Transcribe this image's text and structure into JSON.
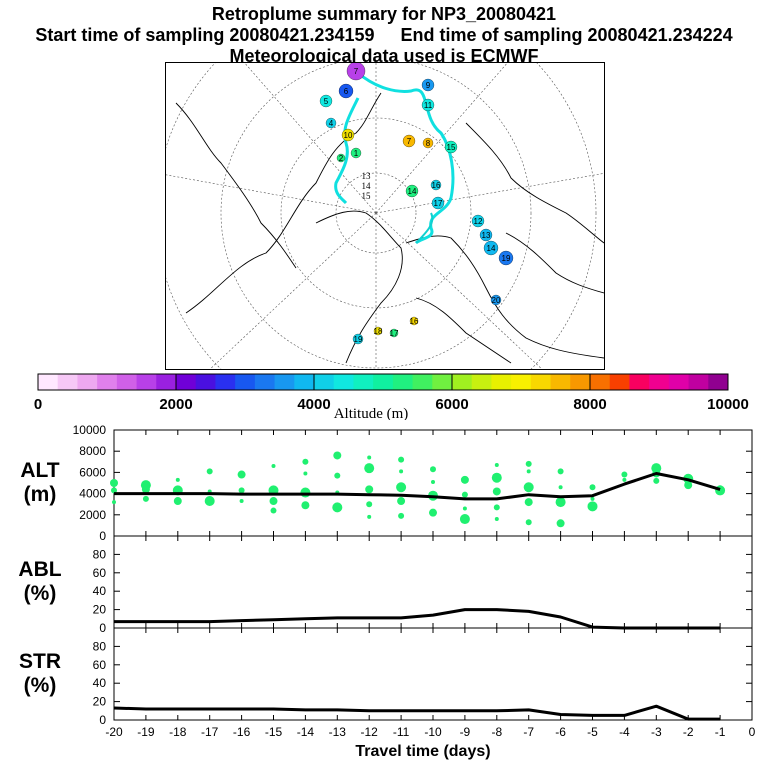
{
  "header": {
    "title": "Retroplume summary for NP3_20080421",
    "start_label": "Start time of sampling 20080421.234159",
    "end_label": "End time of sampling 20080421.234224",
    "met_label": "Meteorological data used is ECMWF"
  },
  "colorbar": {
    "label": "Altitude (m)",
    "ticks": [
      "0",
      "2000",
      "4000",
      "6000",
      "8000",
      "10000"
    ],
    "colors": [
      "#ffe8ff",
      "#f6c8f6",
      "#eea8f0",
      "#e080ec",
      "#d060e8",
      "#b840e8",
      "#9a20e0",
      "#7000d8",
      "#4a10e0",
      "#2a30f0",
      "#1858f0",
      "#1a78f0",
      "#1898f0",
      "#10b8f0",
      "#10d0e8",
      "#10e8e0",
      "#10f0c0",
      "#10f0a0",
      "#20f080",
      "#40f060",
      "#70f040",
      "#a0f020",
      "#c8f010",
      "#e8f000",
      "#f8f000",
      "#f8d800",
      "#f8b800",
      "#f89800",
      "#f87000",
      "#f84000",
      "#f80060",
      "#f00090",
      "#e000a8",
      "#c000a0",
      "#900090"
    ]
  },
  "map": {
    "point_labels": [
      "1",
      "2",
      "3",
      "4",
      "5",
      "6",
      "7",
      "8",
      "9",
      "10",
      "11",
      "12",
      "13",
      "14",
      "15",
      "16",
      "17",
      "18",
      "19",
      "20"
    ]
  },
  "chart_data": [
    {
      "type": "line",
      "name": "ALT",
      "ylabel": "ALT\n(m)",
      "ylabel_lines": [
        "ALT",
        "(m)"
      ],
      "ylim": [
        0,
        10000
      ],
      "yticks": [
        "0",
        "2000",
        "4000",
        "6000",
        "8000",
        "10000"
      ],
      "x": [
        -20,
        -19,
        -18,
        -17,
        -16,
        -15,
        -14,
        -13,
        -12,
        -11,
        -10,
        -9,
        -8,
        -7,
        -6,
        -5,
        -4,
        -3,
        -2,
        -1
      ],
      "values": [
        4000,
        4000,
        4000,
        4000,
        3950,
        3950,
        3950,
        3950,
        3900,
        3850,
        3700,
        3500,
        3500,
        3900,
        3700,
        3800,
        4900,
        5900,
        5300,
        4400
      ],
      "scatter": [
        {
          "x": -20,
          "y": [
            3200,
            4300,
            5000
          ]
        },
        {
          "x": -19,
          "y": [
            3500,
            4400,
            4800
          ]
        },
        {
          "x": -18,
          "y": [
            3300,
            4300,
            5300
          ]
        },
        {
          "x": -17,
          "y": [
            3300,
            4200,
            6100
          ]
        },
        {
          "x": -16,
          "y": [
            3300,
            4300,
            5800
          ]
        },
        {
          "x": -15,
          "y": [
            2400,
            3300,
            4300,
            6600
          ]
        },
        {
          "x": -14,
          "y": [
            2900,
            4100,
            5900,
            7000
          ]
        },
        {
          "x": -13,
          "y": [
            2700,
            4100,
            5700,
            7600
          ]
        },
        {
          "x": -12,
          "y": [
            1800,
            3000,
            4400,
            6400,
            7400
          ]
        },
        {
          "x": -11,
          "y": [
            1900,
            3300,
            4600,
            6100,
            7200
          ]
        },
        {
          "x": -10,
          "y": [
            2200,
            3800,
            5100,
            6300
          ]
        },
        {
          "x": -9,
          "y": [
            1600,
            2600,
            3900,
            5300
          ]
        },
        {
          "x": -8,
          "y": [
            1600,
            2700,
            4200,
            5500,
            6700
          ]
        },
        {
          "x": -7,
          "y": [
            1300,
            3200,
            4600,
            6100,
            6800
          ]
        },
        {
          "x": -6,
          "y": [
            1200,
            3200,
            4600,
            6100
          ]
        },
        {
          "x": -5,
          "y": [
            2800,
            3500,
            4600
          ]
        },
        {
          "x": -4,
          "y": [
            5300,
            5800
          ]
        },
        {
          "x": -3,
          "y": [
            5200,
            5900,
            6400
          ]
        },
        {
          "x": -2,
          "y": [
            4800,
            5400
          ]
        },
        {
          "x": -1,
          "y": [
            4300,
            4600
          ]
        }
      ]
    },
    {
      "type": "line",
      "name": "ABL",
      "ylabel": "ABL\n(%)",
      "ylabel_lines": [
        "ABL",
        "(%)"
      ],
      "ylim": [
        0,
        100
      ],
      "yticks": [
        "0",
        "20",
        "40",
        "60",
        "80"
      ],
      "x": [
        -20,
        -19,
        -18,
        -17,
        -16,
        -15,
        -14,
        -13,
        -12,
        -11,
        -10,
        -9,
        -8,
        -7,
        -6,
        -5,
        -4,
        -3,
        -2,
        -1
      ],
      "values": [
        7,
        7,
        7,
        7,
        8,
        9,
        10,
        11,
        11,
        11,
        14,
        20,
        20,
        18,
        12,
        1,
        0,
        0,
        0,
        0
      ]
    },
    {
      "type": "line",
      "name": "STR",
      "ylabel": "STR\n(%)",
      "ylabel_lines": [
        "STR",
        "(%)"
      ],
      "ylim": [
        0,
        100
      ],
      "yticks": [
        "0",
        "20",
        "40",
        "60",
        "80"
      ],
      "xlabel": "Travel time (days)",
      "xticks": [
        "-20",
        "-19",
        "-18",
        "-17",
        "-16",
        "-15",
        "-14",
        "-13",
        "-12",
        "-11",
        "-10",
        "-9",
        "-8",
        "-7",
        "-6",
        "-5",
        "-4",
        "-3",
        "-2",
        "-1",
        "0"
      ],
      "x": [
        -20,
        -19,
        -18,
        -17,
        -16,
        -15,
        -14,
        -13,
        -12,
        -11,
        -10,
        -9,
        -8,
        -7,
        -6,
        -5,
        -4,
        -3,
        -2,
        -1
      ],
      "values": [
        13,
        12,
        12,
        12,
        12,
        12,
        11,
        11,
        10,
        10,
        10,
        10,
        10,
        11,
        6,
        5,
        5,
        15,
        1,
        1
      ]
    }
  ]
}
